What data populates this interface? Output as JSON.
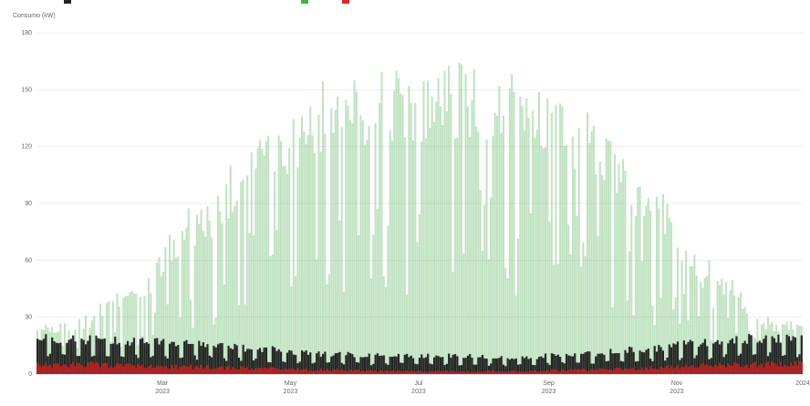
{
  "chart_data": {
    "type": "bar",
    "ylabel": "Consumo (kW)",
    "ylim": [
      0,
      180
    ],
    "yticks": [
      "180",
      "150",
      "120",
      "90",
      "60",
      "30",
      "0"
    ],
    "xticks": [
      {
        "label": "Mar",
        "sub": "2023",
        "day": 60
      },
      {
        "label": "May",
        "sub": "2023",
        "day": 121
      },
      {
        "label": "Jul",
        "sub": "2023",
        "day": 182
      },
      {
        "label": "Sep",
        "sub": "2023",
        "day": 244
      },
      {
        "label": "Nov",
        "sub": "2023",
        "day": 305
      },
      {
        "label": "2024",
        "sub": "",
        "day": 365
      }
    ],
    "x_range_days": [
      0,
      365
    ],
    "grid": true,
    "legend": [
      {
        "name": "",
        "color": "#222222"
      },
      {
        "name": "",
        "color": "#3cb44b"
      },
      {
        "name": "",
        "color": "#d62728"
      }
    ],
    "legend_placement": "top",
    "series": [
      {
        "name": "",
        "color": "#4caf50",
        "kind": "solar-envelope",
        "monthly_peak": [
          28,
          48,
          90,
          130,
          155,
          160,
          165,
          160,
          140,
          105,
          60,
          30
        ]
      },
      {
        "name": "",
        "color": "#111111",
        "kind": "daily-consumption",
        "monthly_peak": [
          21,
          20,
          18,
          15,
          12,
          11,
          11,
          10,
          12,
          15,
          19,
          22
        ]
      },
      {
        "name": "",
        "color": "#b22222",
        "kind": "grid-import",
        "monthly_peak": [
          7,
          6,
          5,
          4,
          3,
          2,
          2,
          2,
          3,
          4,
          6,
          7
        ]
      }
    ]
  }
}
